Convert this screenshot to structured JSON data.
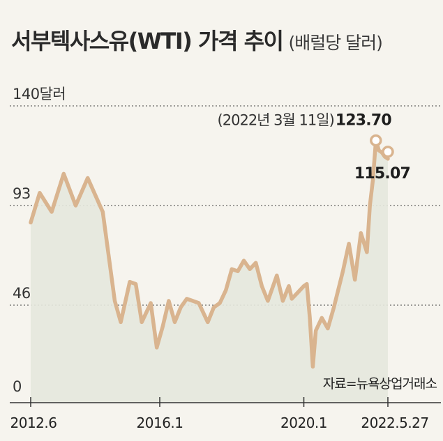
{
  "chart_data": {
    "type": "area",
    "title": "서부텍사스유(WTI) 가격 추이",
    "subtitle": "(배럴당 달러)",
    "y_ticks": [
      {
        "value": 140,
        "label": "140달러"
      },
      {
        "value": 93,
        "label": "93"
      },
      {
        "value": 46,
        "label": "46"
      },
      {
        "value": 0,
        "label": "0"
      }
    ],
    "ylim": [
      0,
      140
    ],
    "x_ticks": [
      {
        "x": 0,
        "label": "2012.6"
      },
      {
        "x": 43,
        "label": "2016.1"
      },
      {
        "x": 91,
        "label": "2020.1"
      },
      {
        "x": 119,
        "label": "2022.5.27"
      }
    ],
    "x_range": [
      0,
      119
    ],
    "grid": "horizontal dotted at 140, 93, 46",
    "series": [
      {
        "color": "#d9b48f",
        "x": [
          0,
          3,
          7,
          11,
          15,
          19,
          24,
          28,
          30,
          33,
          35,
          37,
          40,
          42,
          44,
          46,
          48,
          50,
          52,
          54,
          56,
          59,
          61,
          63,
          65,
          67,
          69,
          71,
          73,
          75,
          77,
          79,
          80,
          82,
          84,
          86,
          87,
          89,
          91,
          92,
          93,
          94,
          95,
          97,
          99,
          101,
          104,
          106,
          108,
          110,
          112,
          113,
          114,
          115,
          116,
          117,
          118,
          119
        ],
        "values": [
          85,
          99,
          90,
          108,
          93,
          106,
          90,
          48,
          38,
          57,
          56,
          38,
          47,
          26,
          36,
          48,
          38,
          45,
          49,
          48,
          47,
          38,
          45,
          47,
          53,
          63,
          62,
          67,
          63,
          66,
          55,
          48,
          52,
          60,
          48,
          55,
          49,
          52,
          55,
          56,
          40,
          17,
          34,
          40,
          35,
          45,
          62,
          75,
          58,
          80,
          71,
          93,
          105,
          123.7,
          119,
          118,
          116,
          115.07
        ]
      }
    ],
    "annotations": [
      {
        "x": 116,
        "value": 123.7,
        "date_label": "(2022년 3월 11일)",
        "value_label": "123.70"
      },
      {
        "x": 119,
        "value": 115.07,
        "value_label": "115.07"
      }
    ],
    "source": "자료=뉴욕상업거래소"
  }
}
